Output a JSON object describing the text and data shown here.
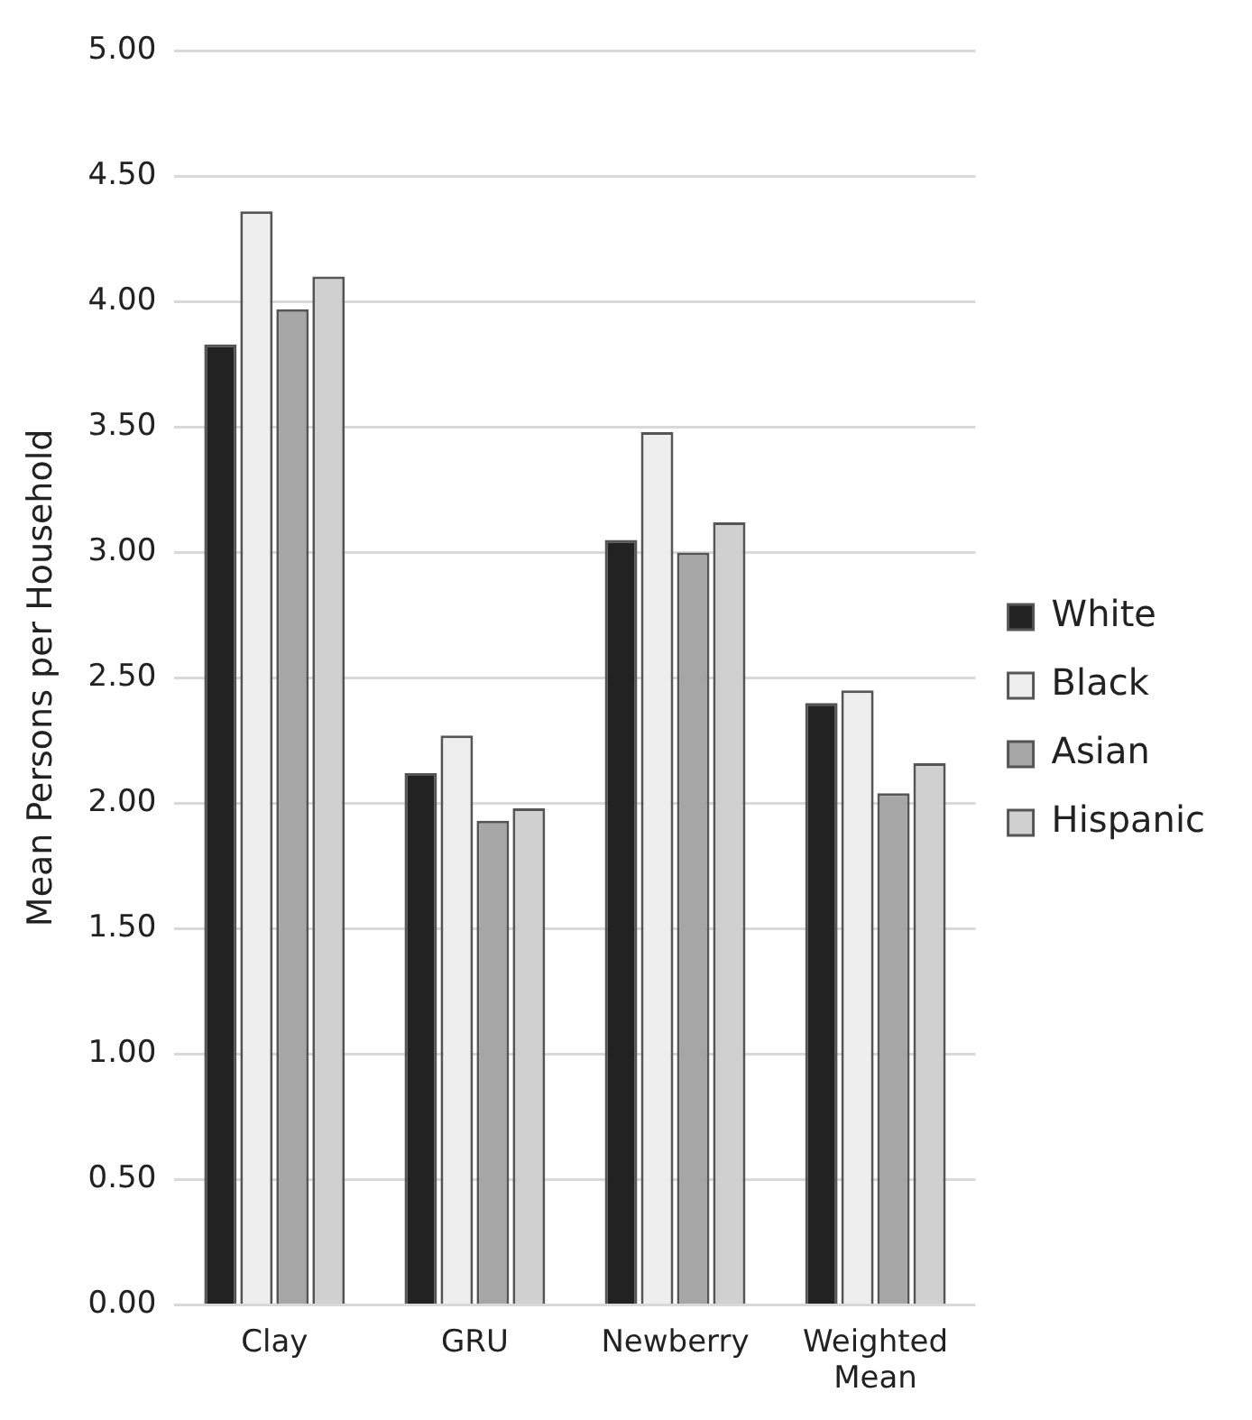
{
  "chart_data": {
    "type": "bar",
    "ylabel": "Mean Persons per Household",
    "categories": [
      "Clay",
      "GRU",
      "Newberry",
      "Weighted Mean"
    ],
    "series": [
      {
        "name": "White",
        "color": "#222222",
        "values": [
          3.83,
          2.12,
          3.05,
          2.4
        ]
      },
      {
        "name": "Black",
        "color": "#eeeeee",
        "values": [
          4.36,
          2.27,
          3.48,
          2.45
        ]
      },
      {
        "name": "Asian",
        "color": "#a6a6a6",
        "values": [
          3.97,
          1.93,
          3.0,
          2.04
        ]
      },
      {
        "name": "Hispanic",
        "color": "#d0d0d0",
        "values": [
          4.1,
          1.98,
          3.12,
          2.16
        ]
      }
    ],
    "ylim": [
      0,
      5
    ],
    "yticks": [
      {
        "value": 0,
        "label": "0.00"
      },
      {
        "value": 0.5,
        "label": "0.50"
      },
      {
        "value": 1,
        "label": "1.00"
      },
      {
        "value": 1.5,
        "label": "1.50"
      },
      {
        "value": 2,
        "label": "2.00"
      },
      {
        "value": 2.5,
        "label": "2.50"
      },
      {
        "value": 3,
        "label": "3.00"
      },
      {
        "value": 3.5,
        "label": "3.50"
      },
      {
        "value": 4,
        "label": "4.00"
      },
      {
        "value": 4.5,
        "label": "4.50"
      },
      {
        "value": 5,
        "label": "5.00"
      }
    ],
    "grid": "y",
    "legend": "right"
  }
}
